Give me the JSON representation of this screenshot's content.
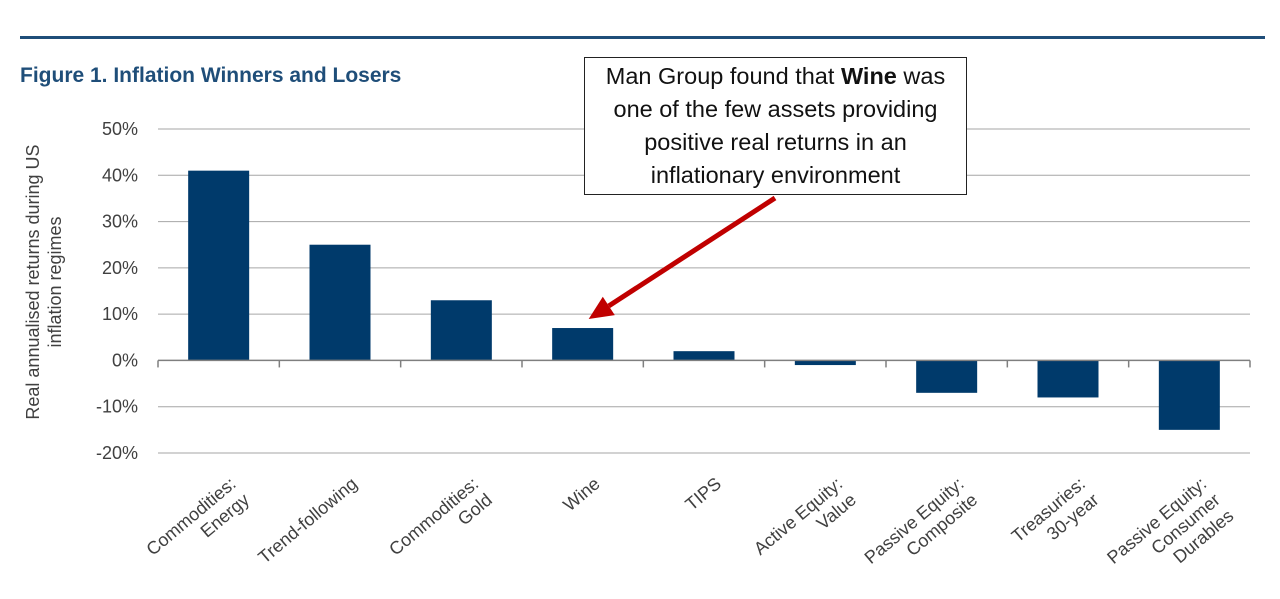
{
  "figure": {
    "title": "Figure 1. Inflation Winners and Losers"
  },
  "callout": {
    "text_before": "Man Group found that ",
    "text_bold": "Wine",
    "text_after": " was one of the few assets providing positive real returns in an inflationary environment"
  },
  "colors": {
    "bar": "#003a6b",
    "title": "#1f4e79",
    "arrow": "#c00000",
    "grid": "#a6a6a6"
  },
  "chart_data": {
    "type": "bar",
    "title": "Figure 1. Inflation Winners and Losers",
    "ylabel": "Real annualised returns during US inflation regimes",
    "xlabel": "",
    "categories": [
      [
        "Commodities:",
        "Energy"
      ],
      [
        "Trend-following"
      ],
      [
        "Commodities:",
        "Gold"
      ],
      [
        "Wine"
      ],
      [
        "TIPS"
      ],
      [
        "Active Equity:",
        "Value"
      ],
      [
        "Passive Equity:",
        "Composite"
      ],
      [
        "Treasuries:",
        "30-year"
      ],
      [
        "Passive Equity:",
        "Consumer",
        "Durables"
      ]
    ],
    "values": [
      41,
      25,
      13,
      7,
      2,
      -1,
      -7,
      -8,
      -15
    ],
    "ylim": [
      -20,
      50
    ],
    "yticks": [
      -20,
      -10,
      0,
      10,
      20,
      30,
      40,
      50
    ],
    "ytick_labels": [
      "-20%",
      "-10%",
      "0%",
      "10%",
      "20%",
      "30%",
      "40%",
      "50%"
    ],
    "grid": true,
    "annotation": "Wine"
  }
}
